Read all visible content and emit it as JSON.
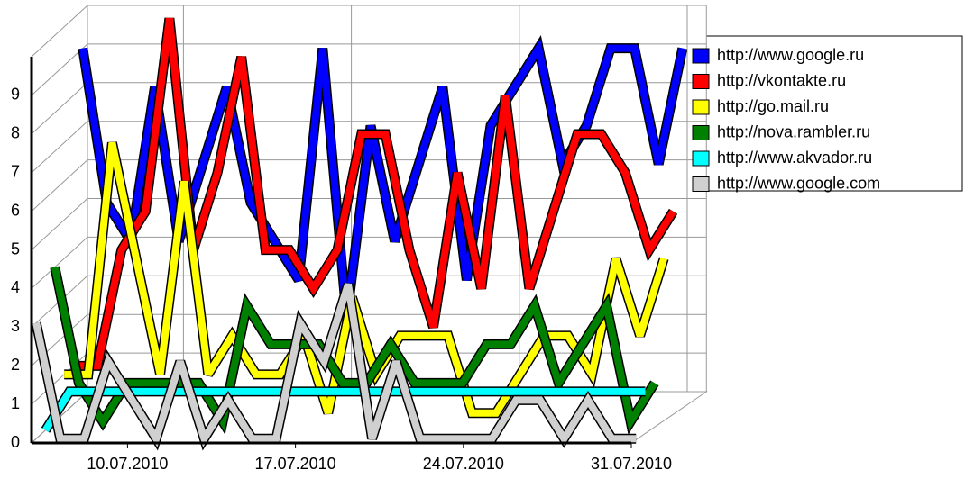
{
  "chart_data": {
    "type": "line3d",
    "categories": [
      null,
      null,
      null,
      null,
      "10.07.2010",
      null,
      null,
      null,
      null,
      null,
      null,
      "17.07.2010",
      null,
      null,
      null,
      null,
      null,
      null,
      "24.07.2010",
      null,
      null,
      null,
      null,
      null,
      null,
      "31.07.2010"
    ],
    "ylim": [
      0,
      10
    ],
    "yticks": [
      0,
      1,
      2,
      3,
      4,
      5,
      6,
      7,
      8,
      9
    ],
    "grid": true,
    "legend": "right",
    "series": [
      {
        "name": "http://www.google.ru",
        "color": "#0000ff",
        "values": [
          9,
          5,
          4,
          8,
          4,
          6,
          8,
          5,
          4,
          3,
          9,
          2,
          7,
          4,
          6,
          8,
          3,
          7,
          8,
          9,
          6,
          7,
          9,
          9,
          6,
          9
        ]
      },
      {
        "name": "http://vkontakte.ru",
        "color": "#ff0000",
        "values": [
          1,
          1,
          4,
          5,
          10,
          4,
          6,
          9,
          4,
          4,
          3,
          4,
          7,
          7,
          4,
          2,
          6,
          3,
          8,
          3,
          5,
          7,
          7,
          6,
          4,
          5
        ]
      },
      {
        "name": "http://go.mail.ru",
        "color": "#ffff00",
        "values": [
          1,
          1,
          7,
          4,
          1,
          6,
          1,
          2,
          1,
          1,
          2,
          0,
          3,
          1,
          2,
          2,
          2,
          0,
          0,
          1,
          2,
          2,
          1,
          4,
          2,
          4
        ]
      },
      {
        "name": "http://nova.rambler.ru",
        "color": "#008000",
        "values": [
          4,
          1,
          0,
          1,
          1,
          1,
          1,
          0,
          3,
          2,
          2,
          2,
          1,
          1,
          2,
          1,
          1,
          1,
          2,
          2,
          3,
          1,
          2,
          3,
          0,
          1
        ]
      },
      {
        "name": "http://www.akvador.ru",
        "color": "#00ffff",
        "values": [
          0,
          1,
          1,
          1,
          1,
          1,
          1,
          1,
          1,
          1,
          1,
          1,
          1,
          1,
          1,
          1,
          1,
          1,
          1,
          1,
          1,
          1,
          1,
          1,
          1,
          1
        ]
      },
      {
        "name": "http://www.google.com",
        "color": "#d0d0d0",
        "values": [
          3,
          0,
          0,
          2,
          1,
          0,
          2,
          0,
          1,
          0,
          0,
          3,
          2,
          4,
          0,
          2,
          0,
          0,
          0,
          0,
          1,
          1,
          0,
          1,
          0,
          0
        ]
      }
    ]
  }
}
